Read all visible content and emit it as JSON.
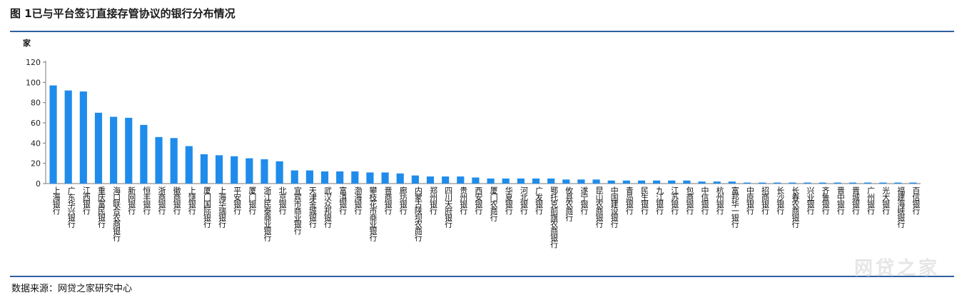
{
  "title": "图 1已与平台签订直接存管协议的银行分布情况",
  "source": "数据来源：网贷之家研究中心",
  "watermark": "网贷之家",
  "colors": {
    "bar": "#1f8ceb",
    "rule": "#2f5fa0"
  },
  "chart_data": {
    "type": "bar",
    "ylabel": "家",
    "ylim": [
      0,
      120
    ],
    "yticks": [
      0,
      20,
      40,
      60,
      80,
      100,
      120
    ],
    "grid": false,
    "categories": [
      "上海银行",
      "广东华兴银行",
      "江西银行",
      "重庆富民银行",
      "海口联合农商银行",
      "新网银行",
      "恒丰银行",
      "浙商银行",
      "徽商银行",
      "上饶银行",
      "厦门国际银行",
      "上海华瑞银行",
      "平安银行",
      "厦门银行",
      "浙江民泰商业银行",
      "北京银行",
      "宜宾市商业银行",
      "天津金城银行",
      "武汉众邦银行",
      "富滇银行",
      "渤海银行",
      "攀枝花市商业银行",
      "晋商银行",
      "廊坊银行",
      "内蒙古陕坝农商行",
      "郑州银行",
      "四川天府银行",
      "贵州银行",
      "西安银行",
      "厦门农商行",
      "华夏银行",
      "河北银行",
      "广发银行",
      "鄂托克前旗农商银行",
      "攸县农商行",
      "遂宁银行",
      "昆山农商银行",
      "中国建设银行",
      "青岛银行",
      "民生银行",
      "九江银行",
      "江苏银行",
      "包商银行",
      "中信银行",
      "杭州银行",
      "富邦华一银行",
      "中原银行",
      "招商银行",
      "长沙银行",
      "长春农商银行",
      "兴业银行",
      "齐鲁银行",
      "晋中银行",
      "晋城银行",
      "广州银行",
      "光大银行",
      "福建海峡银行",
      "百信银行"
    ],
    "values": [
      97,
      92,
      91,
      70,
      66,
      65,
      58,
      46,
      45,
      37,
      29,
      28,
      27,
      25,
      24,
      22,
      13,
      13,
      12,
      12,
      12,
      11,
      11,
      10,
      8,
      7,
      7,
      7,
      6,
      5,
      5,
      5,
      5,
      5,
      4,
      4,
      4,
      3,
      3,
      3,
      3,
      3,
      3,
      2,
      2,
      2,
      1,
      1,
      1,
      1,
      1,
      1,
      1,
      1,
      1,
      1,
      1,
      1
    ]
  }
}
